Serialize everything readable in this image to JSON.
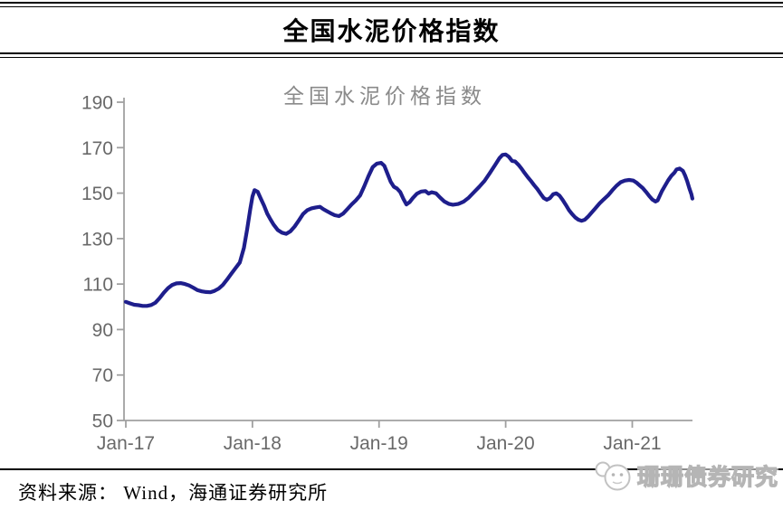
{
  "header": {
    "title": "全国水泥价格指数"
  },
  "chart_data": {
    "type": "line",
    "title": "全国水泥价格指数",
    "grid": false,
    "legend_position": "none",
    "axis_color": "#a0a0a0",
    "label_color": "#696969",
    "x_axis": {
      "tick_labels": [
        "Jan-17",
        "Jan-18",
        "Jan-19",
        "Jan-20",
        "Jan-21"
      ],
      "months_per_tick": 12
    },
    "y_axis": {
      "tick_values": [
        190,
        170,
        150,
        130,
        110,
        90,
        70,
        50
      ],
      "min": 50,
      "max": 190
    },
    "series": [
      {
        "name": "全国水泥价格指数",
        "color": "#1e1e8c",
        "x_months_since_jan17": [
          0,
          0.4,
          0.8,
          1.2,
          1.6,
          2,
          2.4,
          2.8,
          3.2,
          3.6,
          4,
          4.4,
          4.8,
          5.2,
          5.6,
          6,
          6.4,
          6.8,
          7.2,
          7.6,
          8,
          8.4,
          8.8,
          9.2,
          9.6,
          10,
          10.4,
          10.8,
          11.2,
          11.5,
          11.8,
          12,
          12.2,
          12.5,
          12.8,
          13.1,
          13.4,
          13.7,
          14,
          14.4,
          14.8,
          15.2,
          15.6,
          16,
          16.4,
          16.8,
          17.2,
          17.6,
          18,
          18.4,
          18.7,
          19,
          19.4,
          19.8,
          20.2,
          20.6,
          21,
          21.4,
          21.8,
          22.2,
          22.6,
          23,
          23.4,
          23.8,
          24.2,
          24.5,
          24.8,
          25.1,
          25.4,
          25.7,
          26,
          26.3,
          26.6,
          26.9,
          27.2,
          27.6,
          28,
          28.4,
          28.7,
          29,
          29.4,
          29.8,
          30.2,
          30.6,
          31,
          31.5,
          32,
          32.5,
          33,
          33.5,
          34,
          34.5,
          35,
          35.4,
          35.7,
          36,
          36.3,
          36.6,
          36.9,
          37.2,
          37.5,
          37.8,
          38.1,
          38.4,
          38.7,
          39,
          39.3,
          39.6,
          39.9,
          40.2,
          40.5,
          40.8,
          41.1,
          41.4,
          41.7,
          42,
          42.3,
          42.6,
          42.9,
          43.2,
          43.5,
          43.8,
          44.1,
          44.5,
          44.9,
          45.3,
          45.7,
          46.1,
          46.5,
          46.9,
          47.3,
          47.7,
          48.1,
          48.4,
          48.7,
          49,
          49.3,
          49.6,
          49.9,
          50.2,
          50.4,
          50.6,
          50.8,
          51.1,
          51.4,
          51.7,
          52,
          52.2,
          52.5,
          52.8,
          53,
          53.2,
          53.4,
          53.6,
          53.7
        ],
        "values": [
          102.2,
          101.5,
          100.9,
          100.7,
          100.4,
          100.4,
          100.8,
          101.8,
          103.8,
          106.2,
          108.2,
          109.6,
          110.3,
          110.4,
          110,
          109.4,
          108.4,
          107.3,
          106.8,
          106.5,
          106.4,
          107,
          108,
          109.6,
          112,
          114.6,
          117,
          119.5,
          126,
          134,
          143,
          148.5,
          151.3,
          150.6,
          147.5,
          144.5,
          141,
          138.5,
          136.2,
          133.8,
          132.6,
          132.1,
          133.2,
          135.3,
          138,
          140.8,
          142.5,
          143.3,
          143.7,
          144,
          143,
          142.2,
          141.2,
          140.3,
          139.9,
          141,
          143,
          145,
          146.8,
          149,
          153,
          157.5,
          161.5,
          163,
          163.3,
          162,
          158.5,
          155,
          152.8,
          152,
          150.5,
          147.5,
          145,
          146,
          147.8,
          149.8,
          150.7,
          150.9,
          149.8,
          150.4,
          149.9,
          148,
          146.3,
          145.3,
          144.9,
          145.2,
          146.2,
          148,
          150.4,
          152.8,
          155.4,
          158.8,
          162.4,
          165.3,
          166.8,
          167,
          166,
          164.2,
          163.9,
          162.5,
          160.8,
          158.8,
          157,
          155.3,
          153.5,
          151.8,
          149.8,
          147.9,
          147.1,
          147.8,
          149.5,
          149.9,
          148.9,
          147,
          144.8,
          142.5,
          140.8,
          139.3,
          138.3,
          137.8,
          138.3,
          139.6,
          141.2,
          143.3,
          145.5,
          147.3,
          149,
          151.2,
          153.2,
          154.8,
          155.5,
          155.8,
          155.5,
          154.6,
          153.4,
          152.2,
          150.6,
          148.8,
          147.2,
          146.3,
          146.8,
          148.8,
          150.8,
          153.2,
          155.6,
          157.6,
          159,
          160.4,
          160.8,
          159.8,
          157.8,
          155.3,
          152.3,
          149.5,
          147.6
        ]
      }
    ]
  },
  "footer": {
    "source_label": "资料来源： Wind，海通证券研究所",
    "watermark": {
      "label": "珊珊债券研究",
      "icon": "chat-face-icon"
    }
  }
}
